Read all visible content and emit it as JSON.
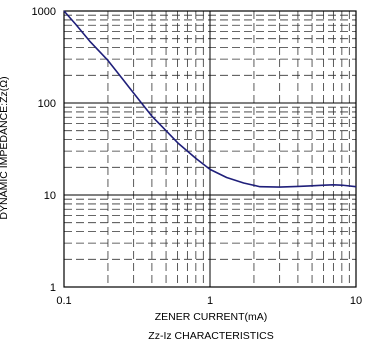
{
  "chart_data": {
    "type": "line",
    "title": "Zz-Iz CHARACTERISTICS",
    "xlabel": "ZENER CURRENT(mA)",
    "ylabel": "DYNAMIC IMPEDANCE:Zz(Ω)",
    "x_scale": "log",
    "y_scale": "log",
    "xlim": [
      0.1,
      10
    ],
    "ylim": [
      1,
      1000
    ],
    "x_ticks": [
      {
        "value": 0.1,
        "label": "0.1"
      },
      {
        "value": 1,
        "label": "1"
      },
      {
        "value": 10,
        "label": "10"
      }
    ],
    "y_ticks": [
      {
        "value": 1000,
        "label": "1000"
      },
      {
        "value": 100,
        "label": "100"
      },
      {
        "value": 10,
        "label": "10"
      },
      {
        "value": 1,
        "label": "1"
      }
    ],
    "grid": true,
    "line_color": "#1f1f7a",
    "series": [
      {
        "x": [
          0.1,
          0.12,
          0.15,
          0.2,
          0.25,
          0.3,
          0.35,
          0.4,
          0.5,
          0.6,
          0.7,
          0.8,
          1.0,
          1.3,
          1.7,
          2.2,
          3,
          4,
          5,
          6,
          7,
          8,
          10
        ],
        "y": [
          1000,
          720,
          470,
          290,
          185,
          128,
          94,
          72,
          50,
          37,
          30,
          25,
          19,
          15.5,
          13.5,
          12.3,
          12.2,
          12.4,
          12.6,
          12.8,
          12.9,
          12.8,
          12.3
        ]
      }
    ]
  }
}
